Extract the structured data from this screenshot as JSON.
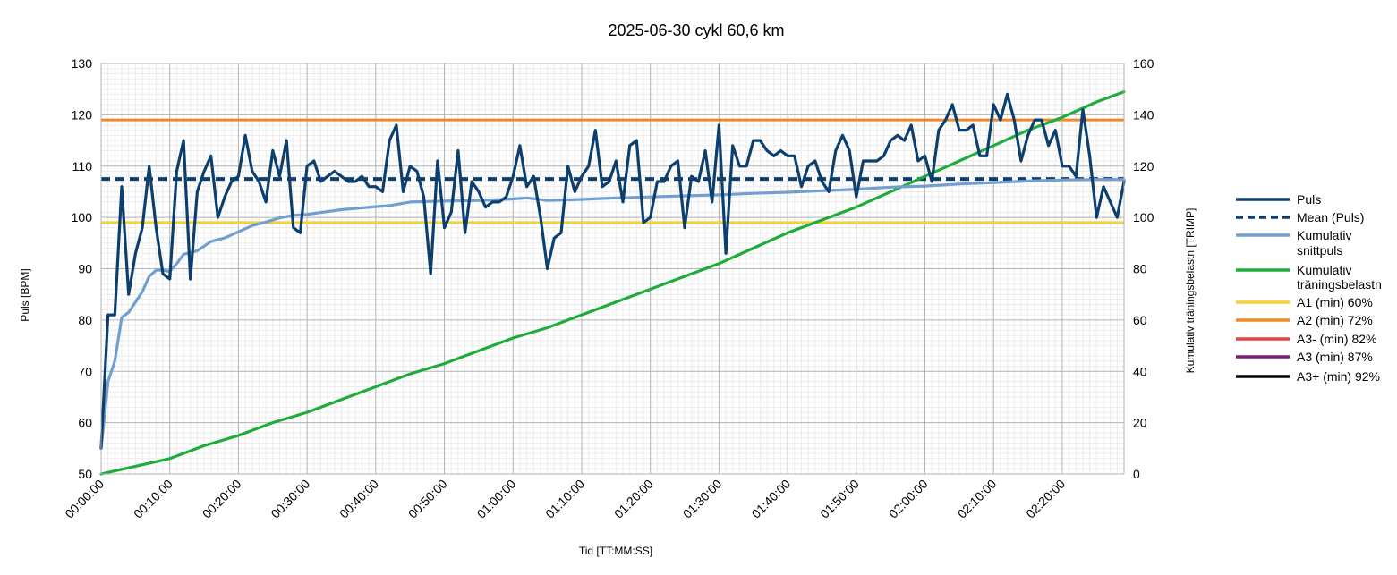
{
  "chart_data": {
    "type": "line",
    "title": "2025-06-30 cykl 60,6 km",
    "xlabel": "Tid [TT:MM:SS]",
    "ylabel": "Puls [BPM]",
    "y2label": "Kumulativ träningsbelastn [TRIMP]",
    "xlim_minutes": [
      0,
      149
    ],
    "ylim": [
      50,
      130
    ],
    "y2lim": [
      0,
      160
    ],
    "grid": true,
    "legend_position": "right",
    "x_tick_labels": [
      "00:00:00",
      "00:10:00",
      "00:20:00",
      "00:30:00",
      "00:40:00",
      "00:50:00",
      "01:00:00",
      "01:10:00",
      "01:20:00",
      "01:30:00",
      "01:40:00",
      "01:50:00",
      "02:00:00",
      "02:10:00",
      "02:20:00"
    ],
    "y_tick_labels": [
      "50",
      "60",
      "70",
      "80",
      "90",
      "100",
      "110",
      "120",
      "130"
    ],
    "y2_tick_labels": [
      "0",
      "20",
      "40",
      "60",
      "80",
      "100",
      "120",
      "140",
      "160"
    ],
    "series": [
      {
        "name": "Puls",
        "color": "#0d3f6e",
        "axis": "left",
        "x": [
          0,
          1,
          2,
          3,
          4,
          5,
          6,
          7,
          8,
          9,
          10,
          11,
          12,
          13,
          14,
          15,
          16,
          17,
          18,
          19,
          20,
          21,
          22,
          23,
          24,
          25,
          26,
          27,
          28,
          29,
          30,
          31,
          32,
          33,
          34,
          35,
          36,
          37,
          38,
          39,
          40,
          41,
          42,
          43,
          44,
          45,
          46,
          47,
          48,
          49,
          50,
          51,
          52,
          53,
          54,
          55,
          56,
          57,
          58,
          59,
          60,
          61,
          62,
          63,
          64,
          65,
          66,
          67,
          68,
          69,
          70,
          71,
          72,
          73,
          74,
          75,
          76,
          77,
          78,
          79,
          80,
          81,
          82,
          83,
          84,
          85,
          86,
          87,
          88,
          89,
          90,
          91,
          92,
          93,
          94,
          95,
          96,
          97,
          98,
          99,
          100,
          101,
          102,
          103,
          104,
          105,
          106,
          107,
          108,
          109,
          110,
          111,
          112,
          113,
          114,
          115,
          116,
          117,
          118,
          119,
          120,
          121,
          122,
          123,
          124,
          125,
          126,
          127,
          128,
          129,
          130,
          131,
          132,
          133,
          134,
          135,
          136,
          137,
          138,
          139,
          140,
          141,
          142,
          143,
          144,
          145,
          146,
          147,
          148,
          149
        ],
        "values": [
          55,
          81,
          81,
          106,
          85,
          93,
          98,
          110,
          98,
          89,
          88,
          109,
          115,
          88,
          105,
          109,
          112,
          100,
          104,
          107,
          108,
          116,
          109,
          107,
          103,
          113,
          108,
          115,
          98,
          97,
          110,
          111,
          107,
          108,
          109,
          108,
          107,
          107,
          108,
          106,
          106,
          105,
          115,
          118,
          105,
          110,
          109,
          104,
          89,
          111,
          98,
          101,
          113,
          97,
          107,
          105,
          102,
          103,
          103,
          104,
          108,
          114,
          106,
          108,
          100,
          90,
          96,
          97,
          110,
          105,
          108,
          110,
          117,
          106,
          107,
          111,
          103,
          114,
          115,
          99,
          100,
          107,
          107,
          110,
          111,
          98,
          108,
          107,
          113,
          103,
          118,
          93,
          114,
          110,
          110,
          115,
          115,
          113,
          112,
          113,
          112,
          112,
          106,
          110,
          111,
          107,
          105,
          113,
          116,
          113,
          104,
          111,
          111,
          111,
          112,
          115,
          116,
          115,
          118,
          111,
          112,
          107,
          117,
          119,
          122,
          117,
          117,
          118,
          112,
          112,
          122,
          119,
          124,
          119,
          111,
          116,
          119,
          119,
          114,
          117,
          110,
          110,
          108,
          121,
          112,
          100,
          106,
          103,
          100,
          107
        ]
      },
      {
        "name": "Mean (Puls)",
        "color": "#0d3f6e",
        "axis": "left",
        "constant": 107.5
      },
      {
        "name": "Kumulativ snittpuls",
        "color": "#729fcf",
        "axis": "left",
        "x": [
          0,
          1,
          2,
          3,
          4,
          5,
          6,
          7,
          8,
          9,
          10,
          11,
          12,
          14,
          16,
          18,
          20,
          22,
          24,
          26,
          28,
          30,
          35,
          40,
          42,
          45,
          50,
          55,
          60,
          62,
          65,
          70,
          75,
          80,
          85,
          90,
          95,
          100,
          105,
          110,
          115,
          120,
          125,
          130,
          135,
          140,
          145,
          149
        ],
        "values": [
          55,
          68,
          72,
          80.5,
          81.5,
          83.5,
          85.5,
          88.5,
          89.7,
          89.7,
          89.5,
          91,
          92.8,
          93.5,
          95.3,
          96,
          97.2,
          98.4,
          99.1,
          99.9,
          100.4,
          100.6,
          101.5,
          102.1,
          102.3,
          103,
          103.2,
          103.3,
          103.6,
          103.8,
          103.3,
          103.5,
          103.8,
          104,
          104.2,
          104.4,
          104.7,
          104.9,
          105.2,
          105.5,
          105.9,
          106.1,
          106.5,
          106.8,
          107.1,
          107.3,
          107.4,
          107.4
        ]
      },
      {
        "name": "Kumulativ träningsbelastn",
        "color": "#1ead3a",
        "axis": "right",
        "x": [
          0,
          5,
          10,
          15,
          20,
          25,
          30,
          35,
          40,
          45,
          50,
          55,
          60,
          65,
          70,
          75,
          80,
          85,
          90,
          95,
          100,
          105,
          110,
          115,
          120,
          125,
          130,
          135,
          140,
          145,
          149
        ],
        "values": [
          0,
          3,
          6,
          11,
          15,
          20,
          24,
          29,
          34,
          39,
          43,
          48,
          53,
          57,
          62,
          67,
          72,
          77,
          82,
          88,
          94,
          99,
          104,
          110,
          116,
          122,
          128,
          134,
          139,
          145,
          149
        ]
      },
      {
        "name": "A1 (min) 60%",
        "color": "#f3d23a",
        "axis": "left",
        "constant": 99
      },
      {
        "name": "A2 (min) 72%",
        "color": "#ed8a2a",
        "axis": "left",
        "constant": 119
      },
      {
        "name": "A3- (min) 82%",
        "color": "#e54545",
        "axis": "left"
      },
      {
        "name": "A3 (min) 87%",
        "color": "#7a1e71",
        "axis": "left"
      },
      {
        "name": "A3+ (min) 92%",
        "color": "#000000",
        "axis": "left"
      }
    ]
  }
}
